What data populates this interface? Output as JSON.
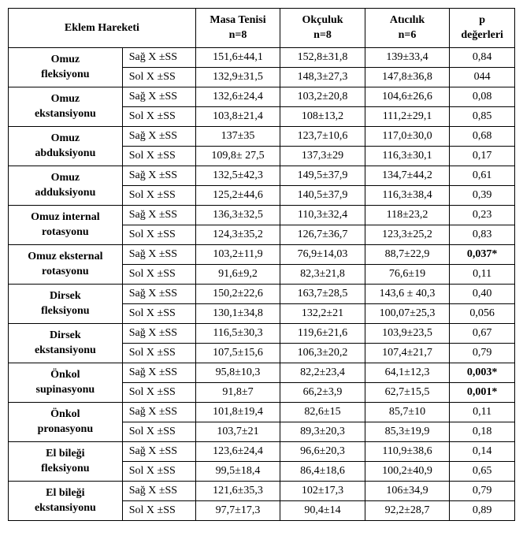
{
  "headers": {
    "joint": "Eklem Hareketi",
    "col1_line1": "Masa Tenisi",
    "col1_line2": "n=8",
    "col2_line1": "Okçuluk",
    "col2_line2": "n=8",
    "col3_line1": "Atıcılık",
    "col3_line2": "n=6",
    "p_line1": "p",
    "p_line2": "değerleri"
  },
  "side": {
    "sag": "Sağ X ±SS",
    "sol": "Sol X ±SS"
  },
  "groups": [
    {
      "label_l1": "Omuz",
      "label_l2": "fleksiyonu",
      "sag": {
        "c1": "151,6±44,1",
        "c2": "152,8±31,8",
        "c3": "139±33,4",
        "p": "0,84",
        "pbold": false
      },
      "sol": {
        "c1": "132,9±31,5",
        "c2": "148,3±27,3",
        "c3": "147,8±36,8",
        "p": "044",
        "pbold": false
      }
    },
    {
      "label_l1": "Omuz",
      "label_l2": "ekstansiyonu",
      "sag": {
        "c1": "132,6±24,4",
        "c2": "103,2±20,8",
        "c3": "104,6±26,6",
        "p": "0,08",
        "pbold": false
      },
      "sol": {
        "c1": "103,8±21,4",
        "c2": "108±13,2",
        "c3": "111,2±29,1",
        "p": "0,85",
        "pbold": false
      }
    },
    {
      "label_l1": "Omuz",
      "label_l2": "abduksiyonu",
      "sag": {
        "c1": "137±35",
        "c2": "123,7±10,6",
        "c3": "117,0±30,0",
        "p": "0,68",
        "pbold": false
      },
      "sol": {
        "c1": "109,8± 27,5",
        "c2": "137,3±29",
        "c3": "116,3±30,1",
        "p": "0,17",
        "pbold": false
      }
    },
    {
      "label_l1": "Omuz",
      "label_l2": "adduksiyonu",
      "sag": {
        "c1": "132,5±42,3",
        "c2": "149,5±37,9",
        "c3": "134,7±44,2",
        "p": "0,61",
        "pbold": false
      },
      "sol": {
        "c1": "125,2±44,6",
        "c2": "140,5±37,9",
        "c3": "116,3±38,4",
        "p": "0,39",
        "pbold": false
      }
    },
    {
      "label_l1": "Omuz internal",
      "label_l2": "rotasyonu",
      "sag": {
        "c1": "136,3±32,5",
        "c2": "110,3±32,4",
        "c3": "118±23,2",
        "p": "0,23",
        "pbold": false
      },
      "sol": {
        "c1": "124,3±35,2",
        "c2": "126,7±36,7",
        "c3": "123,3±25,2",
        "p": "0,83",
        "pbold": false
      }
    },
    {
      "label_l1": "Omuz eksternal",
      "label_l2": "rotasyonu",
      "sag": {
        "c1": "103,2±11,9",
        "c2": "76,9±14,03",
        "c3": "88,7±22,9",
        "p": "0,037*",
        "pbold": true
      },
      "sol": {
        "c1": "91,6±9,2",
        "c2": "82,3±21,8",
        "c3": "76,6±19",
        "p": "0,11",
        "pbold": false
      }
    },
    {
      "label_l1": "Dirsek",
      "label_l2": "fleksiyonu",
      "sag": {
        "c1": "150,2±22,6",
        "c2": "163,7±28,5",
        "c3": "143,6 ± 40,3",
        "p": "0,40",
        "pbold": false
      },
      "sol": {
        "c1": "130,1±34,8",
        "c2": "132,2±21",
        "c3": "100,07±25,3",
        "p": "0,056",
        "pbold": false
      }
    },
    {
      "label_l1": "Dirsek",
      "label_l2": "ekstansiyonu",
      "sag": {
        "c1": "116,5±30,3",
        "c2": "119,6±21,6",
        "c3": "103,9±23,5",
        "p": "0,67",
        "pbold": false
      },
      "sol": {
        "c1": "107,5±15,6",
        "c2": "106,3±20,2",
        "c3": "107,4±21,7",
        "p": "0,79",
        "pbold": false
      }
    },
    {
      "label_l1": "Önkol",
      "label_l2": "supinasyonu",
      "sag": {
        "c1": "95,8±10,3",
        "c2": "82,2±23,4",
        "c3": "64,1±12,3",
        "p": "0,003*",
        "pbold": true
      },
      "sol": {
        "c1": "91,8±7",
        "c2": "66,2±3,9",
        "c3": "62,7±15,5",
        "p": "0,001*",
        "pbold": true
      }
    },
    {
      "label_l1": "Önkol",
      "label_l2": "pronasyonu",
      "sag": {
        "c1": "101,8±19,4",
        "c2": "82,6±15",
        "c3": "85,7±10",
        "p": "0,11",
        "pbold": false
      },
      "sol": {
        "c1": "103,7±21",
        "c2": "89,3±20,3",
        "c3": "85,3±19,9",
        "p": "0,18",
        "pbold": false
      }
    },
    {
      "label_l1": "El bileği",
      "label_l2": "fleksiyonu",
      "sag": {
        "c1": "123,6±24,4",
        "c2": "96,6±20,3",
        "c3": "110,9±38,6",
        "p": "0,14",
        "pbold": false
      },
      "sol": {
        "c1": "99,5±18,4",
        "c2": "86,4±18,6",
        "c3": "100,2±40,9",
        "p": "0,65",
        "pbold": false
      }
    },
    {
      "label_l1": "El bileği",
      "label_l2": "ekstansiyonu",
      "sag": {
        "c1": "121,6±35,3",
        "c2": "102±17,3",
        "c3": "106±34,9",
        "p": "0,79",
        "pbold": false
      },
      "sol": {
        "c1": "97,7±17,3",
        "c2": "90,4±14",
        "c3": "92,2±28,7",
        "p": "0,89",
        "pbold": false
      }
    }
  ]
}
